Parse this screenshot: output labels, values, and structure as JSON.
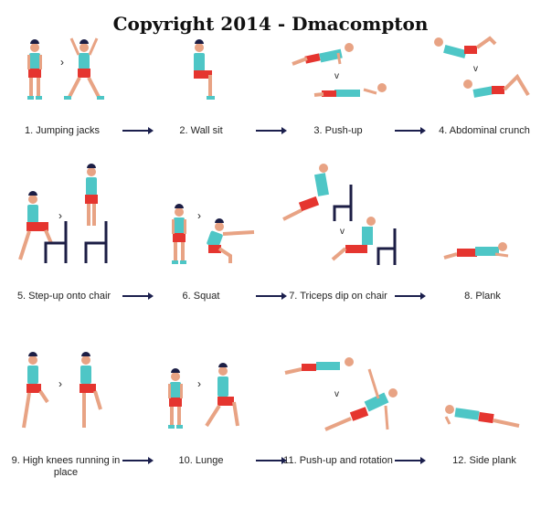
{
  "copyright": "Copyright 2014 - Dmacompton",
  "colors": {
    "shirt": "#4ec6c6",
    "shorts": "#e5352f",
    "skin": "#e8a384",
    "hair": "#1c1e45",
    "shoe": "#4ec6c6",
    "chair": "#1c1e45",
    "arrow": "#1b1f4d"
  },
  "exercises": [
    {
      "label": "1. Jumping jacks"
    },
    {
      "label": "2. Wall sit"
    },
    {
      "label": "3. Push-up"
    },
    {
      "label": "4. Abdominal crunch"
    },
    {
      "label": "5. Step-up onto chair"
    },
    {
      "label": "6. Squat"
    },
    {
      "label": "7. Triceps dip on chair"
    },
    {
      "label": "8. Plank"
    },
    {
      "label": "9. High knees running in place"
    },
    {
      "label": "10. Lunge"
    },
    {
      "label": "11. Push-up and rotation"
    },
    {
      "label": "12. Side plank"
    }
  ]
}
